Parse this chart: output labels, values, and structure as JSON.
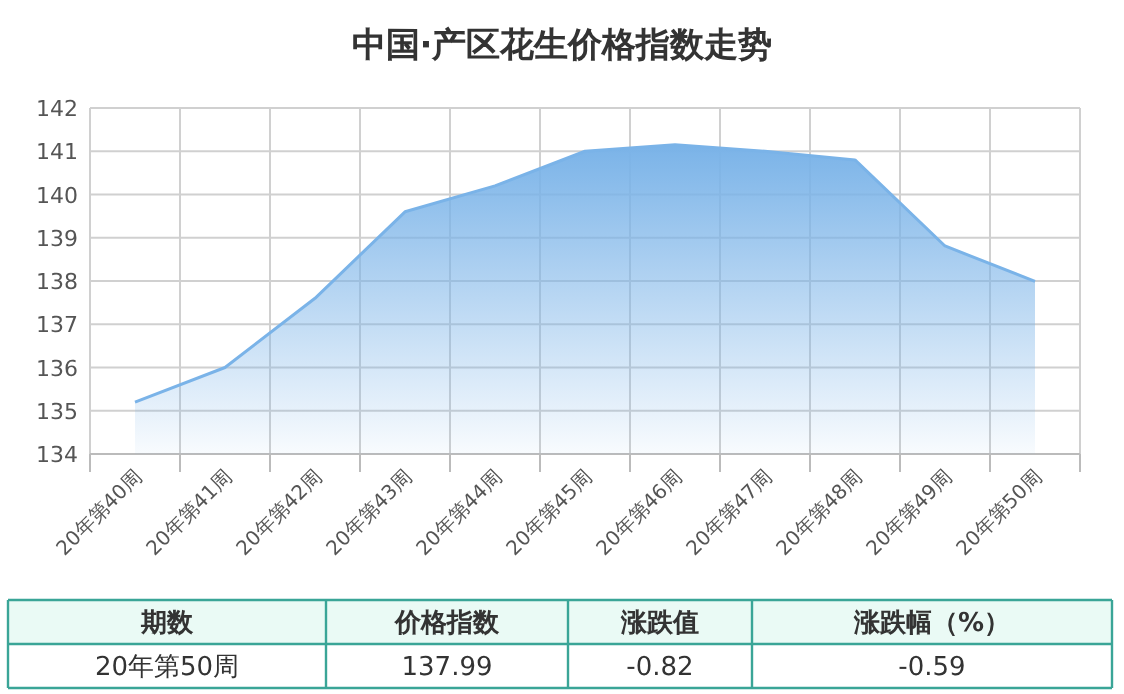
{
  "chart_data": {
    "type": "area",
    "title": "中国·产区花生价格指数走势",
    "categories": [
      "20年第40周",
      "20年第41周",
      "20年第42周",
      "20年第43周",
      "20年第44周",
      "20年第45周",
      "20年第46周",
      "20年第47周",
      "20年第48周",
      "20年第49周",
      "20年第50周"
    ],
    "values": [
      135.2,
      136.0,
      137.6,
      139.6,
      140.2,
      141.0,
      141.15,
      141.0,
      140.8,
      138.81,
      137.99
    ],
    "color": "#7ab3e8",
    "ylim": [
      134,
      142
    ],
    "yticks": [
      134,
      135,
      136,
      137,
      138,
      139,
      140,
      141,
      142
    ],
    "grid": true,
    "annotations": [
      "期数",
      "价格指数",
      "涨跌值",
      "涨跌幅（%）",
      "20年第50周",
      "137.99",
      "-0.82",
      "-0.59"
    ]
  }
}
